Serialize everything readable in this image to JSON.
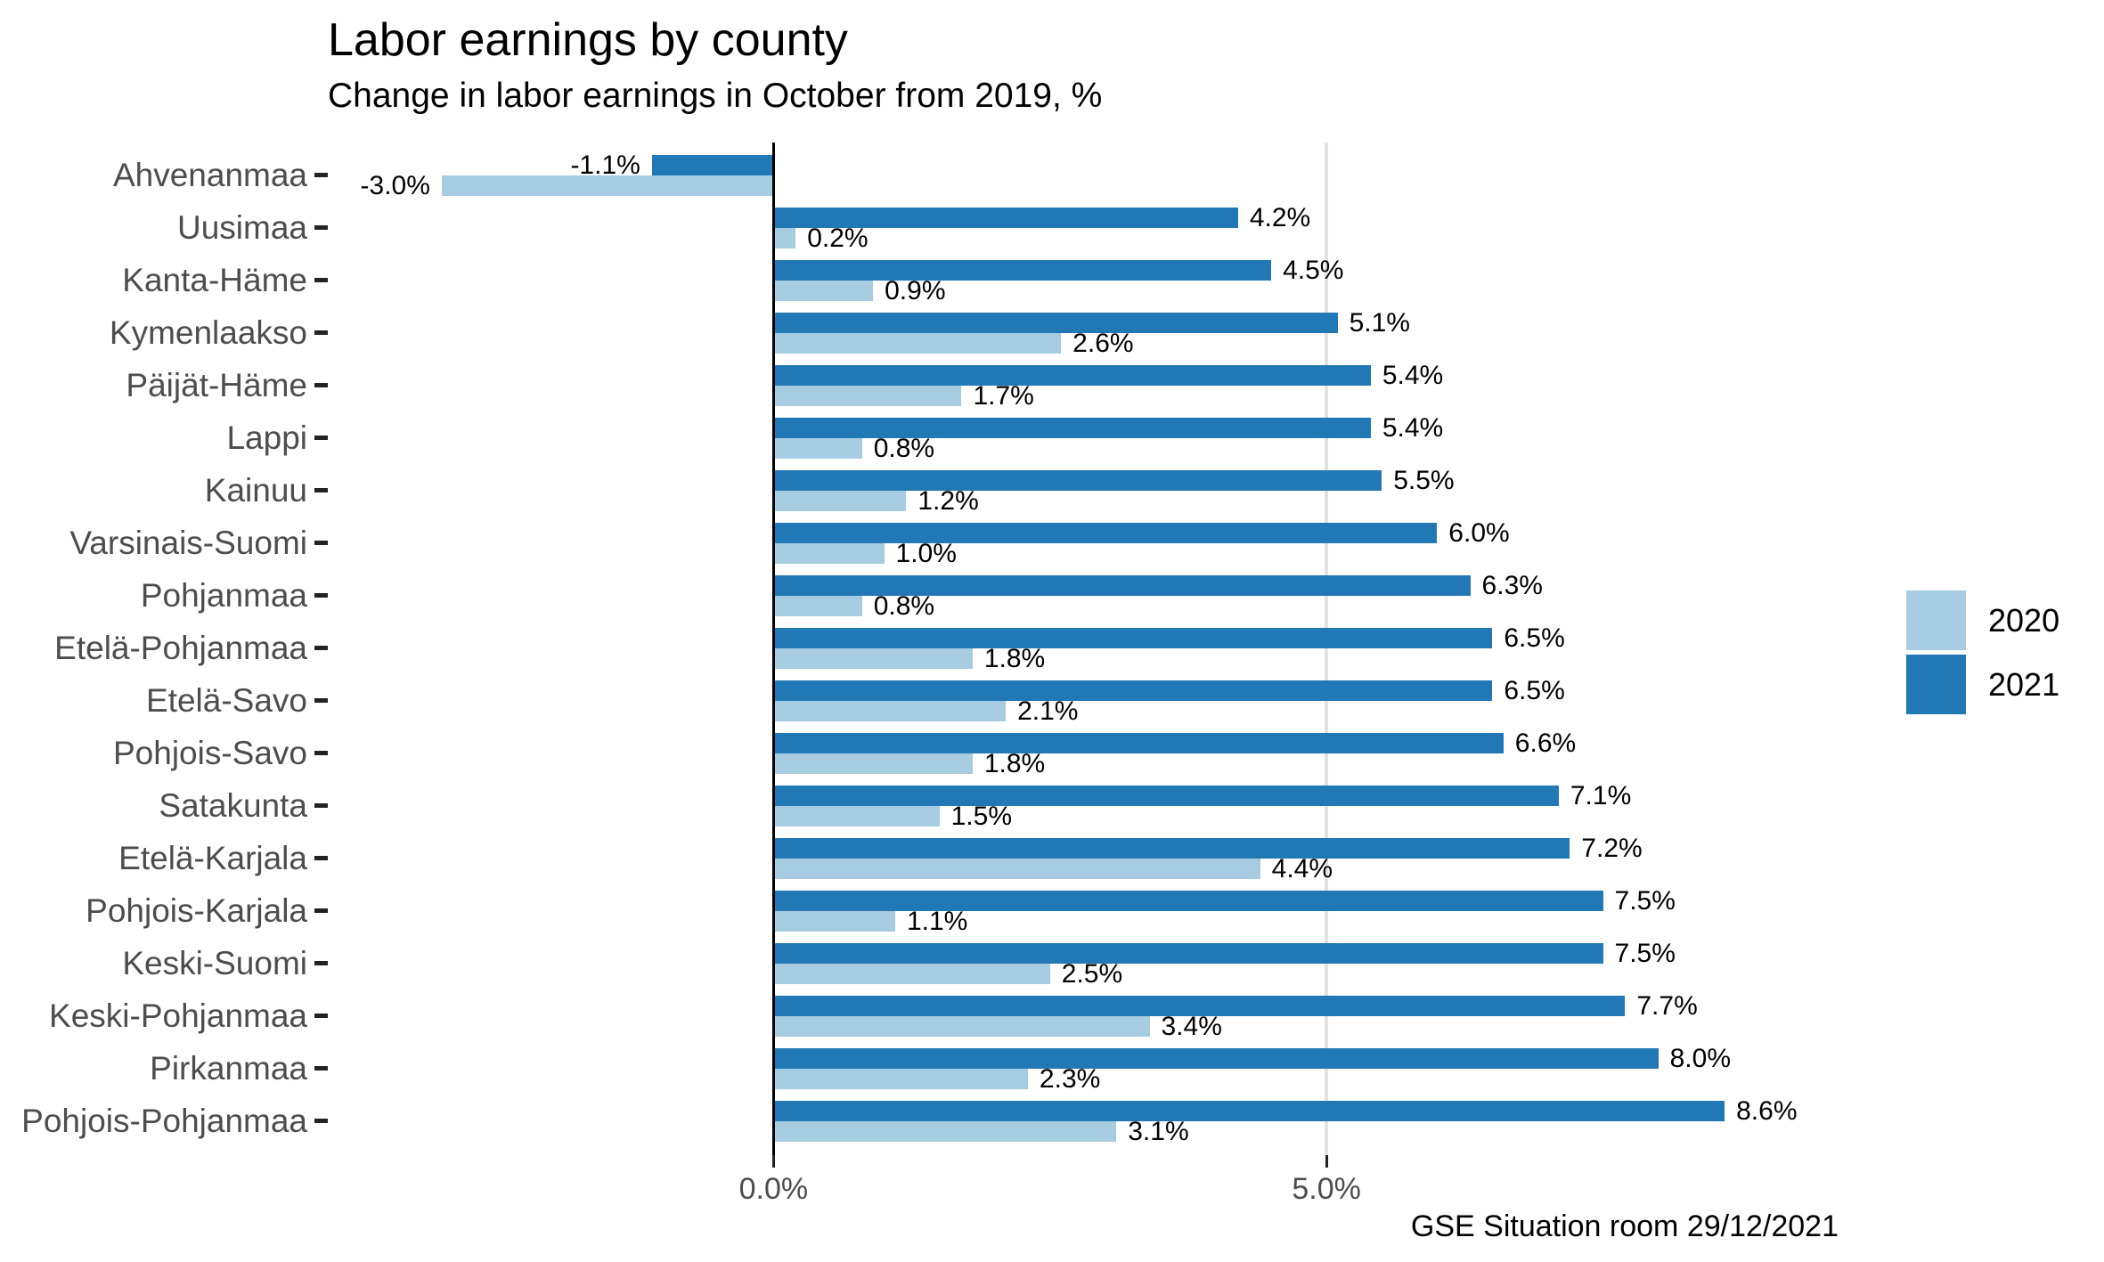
{
  "header": {
    "title": "Labor earnings by county",
    "subtitle": "Change in labor earnings in October from 2019, %"
  },
  "caption": "GSE Situation room 29/12/2021",
  "legend": {
    "items": [
      {
        "label": "2020",
        "color": "#a7cce2"
      },
      {
        "label": "2021",
        "color": "#2277b5"
      }
    ]
  },
  "colors": {
    "series_2020": "#a7cce2",
    "series_2021": "#2277b5",
    "axis_text": "#4d4d4d",
    "value_text": "#000000",
    "gridline": "#e2e2e2",
    "zero_line": "#000000",
    "background": "#ffffff"
  },
  "chart_data": {
    "type": "bar",
    "orientation": "horizontal",
    "title": "Labor earnings by county",
    "subtitle": "Change in labor earnings in October from 2019, %",
    "categories": [
      "Ahvenanmaa",
      "Uusimaa",
      "Kanta-Häme",
      "Kymenlaakso",
      "Päijät-Häme",
      "Lappi",
      "Kainuu",
      "Varsinais-Suomi",
      "Pohjanmaa",
      "Etelä-Pohjanmaa",
      "Etelä-Savo",
      "Pohjois-Savo",
      "Satakunta",
      "Etelä-Karjala",
      "Pohjois-Karjala",
      "Keski-Suomi",
      "Keski-Pohjanmaa",
      "Pirkanmaa",
      "Pohjois-Pohjanmaa"
    ],
    "series": [
      {
        "name": "2021",
        "color": "#2277b5",
        "values": [
          -1.1,
          4.2,
          4.5,
          5.1,
          5.4,
          5.4,
          5.5,
          6.0,
          6.3,
          6.5,
          6.5,
          6.6,
          7.1,
          7.2,
          7.5,
          7.5,
          7.7,
          8.0,
          8.6
        ],
        "labels": [
          "-1.1%",
          "4.2%",
          "4.5%",
          "5.1%",
          "5.4%",
          "5.4%",
          "5.5%",
          "6.0%",
          "6.3%",
          "6.5%",
          "6.5%",
          "6.6%",
          "7.1%",
          "7.2%",
          "7.5%",
          "7.5%",
          "7.7%",
          "8.0%",
          "8.6%"
        ]
      },
      {
        "name": "2020",
        "color": "#a7cce2",
        "values": [
          -3.0,
          0.2,
          0.9,
          2.6,
          1.7,
          0.8,
          1.2,
          1.0,
          0.8,
          1.8,
          2.1,
          1.8,
          1.5,
          4.4,
          1.1,
          2.5,
          3.4,
          2.3,
          3.1
        ],
        "labels": [
          "-3.0%",
          "0.2%",
          "0.9%",
          "2.6%",
          "1.7%",
          "0.8%",
          "1.2%",
          "1.0%",
          "0.8%",
          "1.8%",
          "2.1%",
          "1.8%",
          "1.5%",
          "4.4%",
          "1.1%",
          "2.5%",
          "3.4%",
          "2.3%",
          "3.1%"
        ]
      }
    ],
    "axis": {
      "min": -3.99,
      "max": 9.92,
      "ticks": [
        {
          "value": 0,
          "label": "0.0%"
        },
        {
          "value": 5,
          "label": "5.0%"
        }
      ],
      "grid_values": [
        5
      ]
    },
    "legend_position": "right",
    "grid": "x-major-only"
  }
}
